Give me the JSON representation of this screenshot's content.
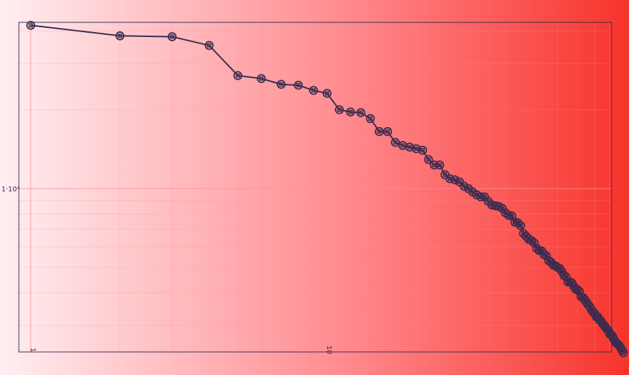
{
  "chart_data": {
    "type": "line",
    "title": "",
    "xlabel": "",
    "ylabel": "",
    "x_scale": "log",
    "y_scale": "log",
    "xlim": [
      1,
      100
    ],
    "ylim": [
      1500,
      60000
    ],
    "x_tick_labels": [
      "1",
      "10"
    ],
    "y_tick_labels": [
      "1·10⁴"
    ],
    "grid": true,
    "legend": "none",
    "series": [
      {
        "marker": "circle-with-square",
        "x": [
          1,
          2,
          3,
          4,
          5,
          6,
          7,
          8,
          9,
          10,
          11,
          12,
          13,
          14,
          15,
          16,
          17,
          18,
          19,
          20,
          21,
          22,
          23,
          24,
          25,
          26,
          27,
          28,
          29,
          30,
          31,
          32,
          33,
          34,
          35,
          36,
          37,
          38,
          39,
          40,
          41,
          42,
          43,
          44,
          45,
          46,
          47,
          48,
          49,
          50,
          51,
          52,
          53,
          54,
          55,
          56,
          57,
          58,
          59,
          60,
          61,
          62,
          63,
          64,
          65,
          66,
          67,
          68,
          69,
          70,
          71,
          72,
          73,
          74,
          75,
          76,
          77,
          78,
          79,
          80,
          81,
          82,
          83,
          84,
          85,
          86,
          87,
          88,
          89,
          90,
          91,
          92,
          93,
          94,
          95,
          96,
          97,
          98,
          99,
          100
        ],
        "y": [
          42000,
          38300,
          38000,
          35200,
          27000,
          26300,
          25000,
          24800,
          23700,
          23100,
          20000,
          19600,
          19500,
          18500,
          16500,
          16500,
          15000,
          14600,
          14400,
          14200,
          14000,
          12900,
          12300,
          12300,
          11300,
          10900,
          10800,
          10600,
          10200,
          10000,
          9700,
          9460,
          9300,
          9290,
          8940,
          8660,
          8600,
          8540,
          8400,
          8080,
          7900,
          7870,
          7440,
          7400,
          7220,
          6740,
          6570,
          6400,
          6330,
          6200,
          5900,
          5800,
          5780,
          5600,
          5530,
          5300,
          5230,
          5100,
          5070,
          5000,
          4950,
          4820,
          4660,
          4600,
          4400,
          4400,
          4360,
          4240,
          4130,
          4110,
          4050,
          3860,
          3840,
          3770,
          3690,
          3600,
          3540,
          3450,
          3370,
          3330,
          3240,
          3230,
          3150,
          3120,
          3050,
          3000,
          2960,
          2900,
          2870,
          2780,
          2760,
          2720,
          2650,
          2600,
          2560,
          2540,
          2510,
          2460,
          2410,
          2360
        ]
      }
    ]
  },
  "colors": {
    "background_start": "#ffeff2",
    "background_mid": "#ff8a8e",
    "background_end": "#f7332b",
    "line": "#3a2c4f",
    "frame": "#3a2c4f",
    "grid": "#ff8d92"
  }
}
